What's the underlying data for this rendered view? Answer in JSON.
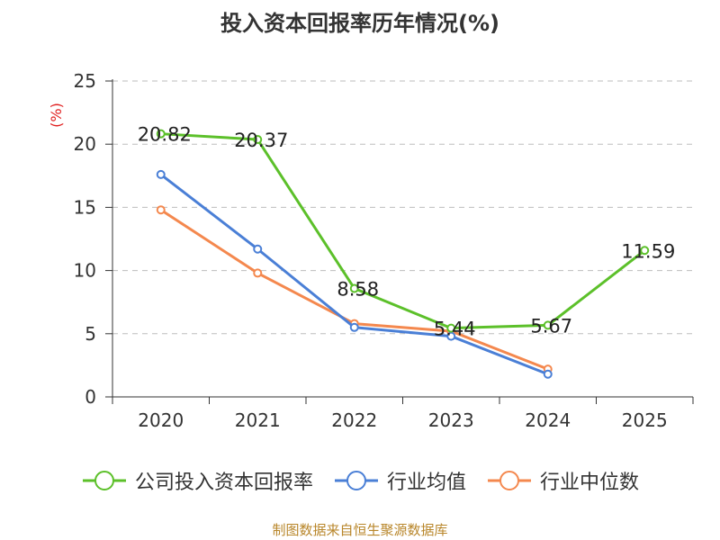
{
  "chart_data": {
    "type": "line",
    "title": "投入资本回报率历年情况(%)",
    "ylabel": "(%)",
    "xlabel": "",
    "categories": [
      "2020",
      "2021",
      "2022",
      "2023",
      "2024",
      "2025"
    ],
    "ylim": [
      0,
      25
    ],
    "yticks": [
      0,
      5,
      10,
      15,
      20,
      25
    ],
    "grid": true,
    "legend_position": "bottom",
    "series": [
      {
        "name": "公司投入资本回报率",
        "color": "#5cc02a",
        "values": [
          20.82,
          20.37,
          8.58,
          5.44,
          5.67,
          11.59
        ],
        "data_labels": [
          "20.82",
          "20.37",
          "8.58",
          "5.44",
          "5.67",
          "11.59"
        ]
      },
      {
        "name": "行业均值",
        "color": "#4a7fd6",
        "values": [
          17.6,
          11.7,
          5.5,
          4.8,
          1.8,
          null
        ]
      },
      {
        "name": "行业中位数",
        "color": "#f4884e",
        "values": [
          14.8,
          9.8,
          5.8,
          5.2,
          2.2,
          null
        ]
      }
    ]
  },
  "footer": {
    "source": "制图数据来自恒生聚源数据库"
  }
}
